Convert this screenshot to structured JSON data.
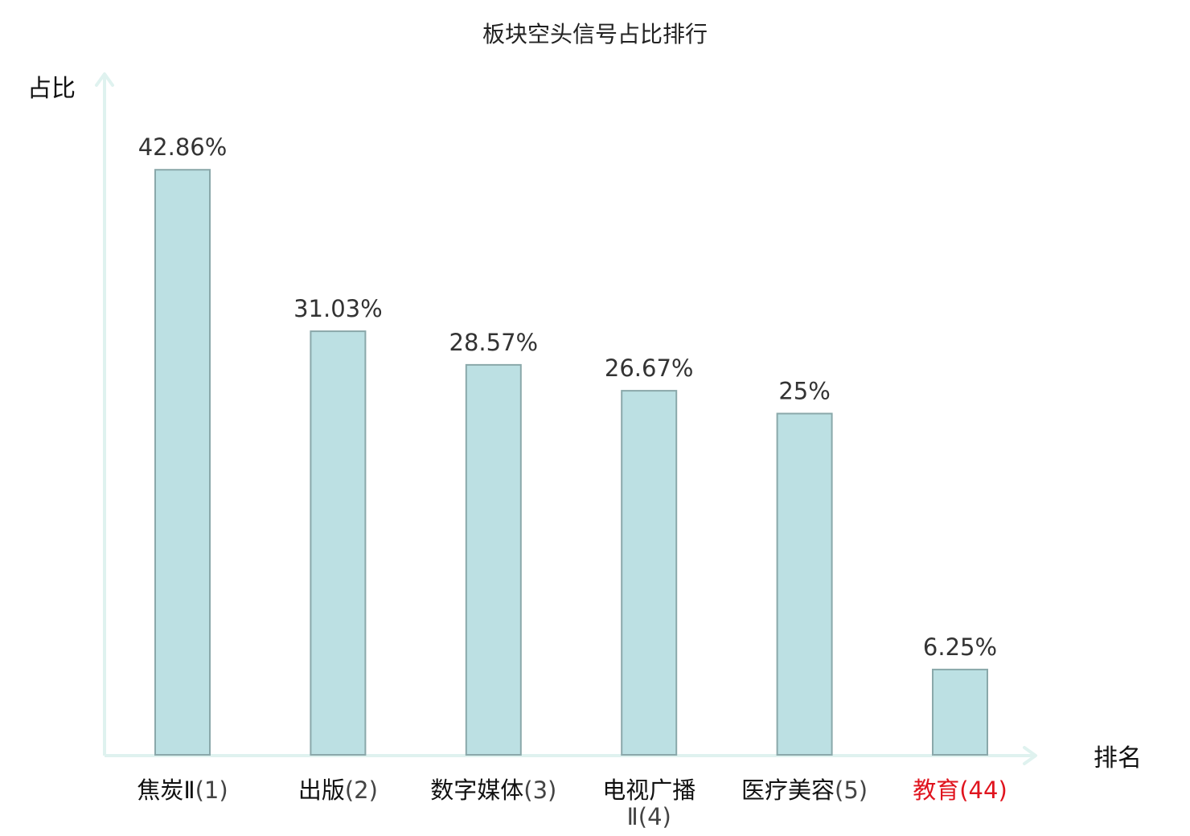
{
  "chart_data": {
    "type": "bar",
    "title": "板块空头信号占比排行",
    "ylabel": "占比",
    "xlabel": "排名",
    "ylim": [
      0,
      50
    ],
    "grid": false,
    "legend": "none",
    "categories": [
      {
        "name": "焦炭Ⅱ",
        "name_line2": "",
        "rank": "(1)",
        "highlight": false
      },
      {
        "name": "出版",
        "name_line2": "",
        "rank": "(2)",
        "highlight": false
      },
      {
        "name": "数字媒体",
        "name_line2": "",
        "rank": "(3)",
        "highlight": false
      },
      {
        "name": "电视广播",
        "name_line2": "Ⅱ",
        "rank": "(4)",
        "highlight": false
      },
      {
        "name": "医疗美容",
        "name_line2": "",
        "rank": "(5)",
        "highlight": false
      },
      {
        "name": "教育",
        "name_line2": "",
        "rank": "(44)",
        "highlight": true
      }
    ],
    "values": [
      42.86,
      31.03,
      28.57,
      26.67,
      25,
      6.25
    ],
    "value_labels": [
      "42.86%",
      "31.03%",
      "28.57%",
      "26.67%",
      "25%",
      "6.25%"
    ],
    "colors": {
      "bar_fill": "#bce0e3",
      "bar_stroke": "#8aa8aa",
      "axis": "#dff2ef",
      "category_text": "#111111",
      "rank_text": "#444444",
      "highlight_text": "#e0141e",
      "value_text": "#333333"
    }
  }
}
